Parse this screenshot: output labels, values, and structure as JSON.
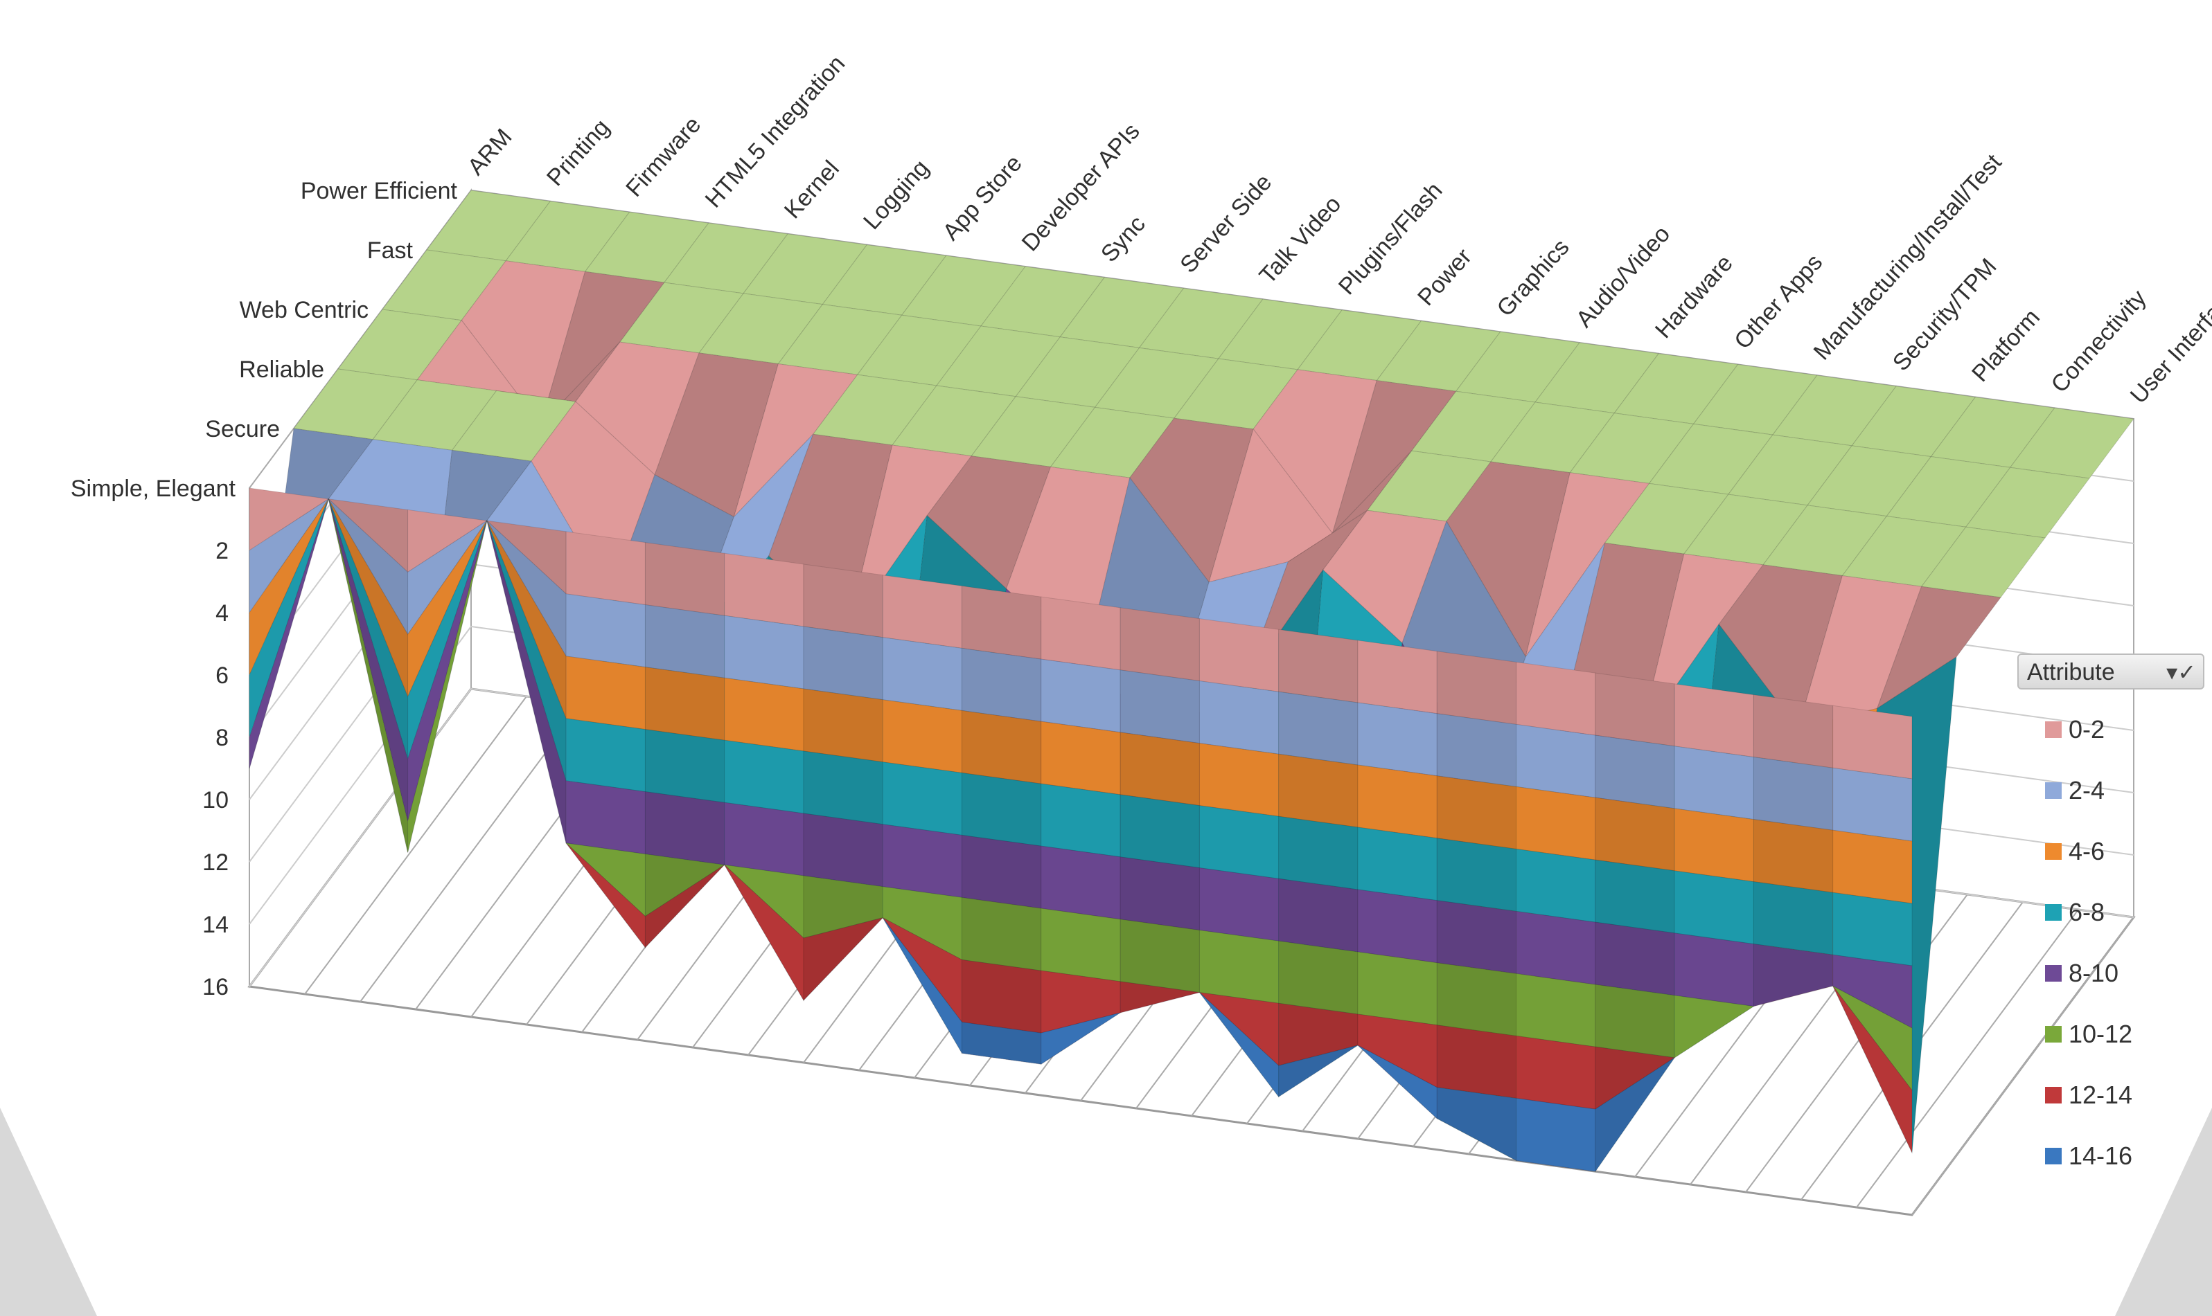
{
  "chart_data": {
    "type": "surface",
    "rows": [
      "Power Efficient",
      "Fast",
      "Web Centric",
      "Reliable",
      "Secure",
      "Simple, Elegant"
    ],
    "columns": [
      "ARM",
      "Printing",
      "Firmware",
      "HTML5 Integration",
      "Kernel",
      "Logging",
      "App Store",
      "Developer APIs",
      "Sync",
      "Server Side",
      "Talk Video",
      "Plugins/Flash",
      "Power",
      "Graphics",
      "Audio/Video",
      "Hardware",
      "Other Apps",
      "Manufacturing/Install/Test",
      "Security/TPM",
      "Platform",
      "Connectivity",
      "User Interface"
    ],
    "z_ticks": [
      "2",
      "4",
      "6",
      "8",
      "10",
      "12",
      "14",
      "16"
    ],
    "zlim": [
      0,
      16
    ],
    "z_axis_inverted": true,
    "legend_title": "Attribute",
    "legend": [
      {
        "label": "0-2",
        "color": "#e09a9a"
      },
      {
        "label": "2-4",
        "color": "#8fa9da"
      },
      {
        "label": "4-6",
        "color": "#ee8a2e"
      },
      {
        "label": "6-8",
        "color": "#1ea2b4"
      },
      {
        "label": "8-10",
        "color": "#6e4a96"
      },
      {
        "label": "10-12",
        "color": "#7aa83a"
      },
      {
        "label": "12-14",
        "color": "#c0393a"
      },
      {
        "label": "14-16",
        "color": "#3a78c0"
      }
    ],
    "top_color": "#b5d38a",
    "legend_placement": "right",
    "values": [
      [
        0,
        0,
        0,
        0,
        0,
        0,
        0,
        0,
        0,
        0,
        0,
        0,
        0,
        0,
        0,
        0,
        0,
        0,
        0,
        0,
        0,
        0
      ],
      [
        0,
        0,
        0,
        0,
        0,
        0,
        0,
        0,
        0,
        0,
        0,
        0,
        0,
        0,
        0,
        0,
        0,
        0,
        0,
        0,
        0,
        0
      ],
      [
        0,
        0,
        3,
        0,
        0,
        0,
        0,
        0,
        0,
        0,
        0,
        0,
        3,
        0,
        0,
        0,
        0,
        0,
        0,
        0,
        0,
        0
      ],
      [
        0,
        0,
        0,
        0,
        2,
        3,
        0,
        0,
        0,
        0,
        0,
        3,
        2,
        0,
        0,
        4,
        0,
        0,
        0,
        0,
        0,
        0
      ],
      [
        0,
        0,
        0,
        0,
        4,
        5,
        2,
        4,
        0,
        2,
        4,
        6,
        4,
        0,
        2,
        6,
        4,
        4,
        0,
        3,
        2,
        0
      ],
      [
        9,
        0,
        11,
        0,
        10,
        13,
        10,
        14,
        11,
        15,
        15,
        13,
        12,
        15,
        13,
        15,
        16,
        16,
        12,
        10,
        9,
        14
      ]
    ]
  },
  "icons": {
    "legend_filter": "filter-check-icon"
  }
}
